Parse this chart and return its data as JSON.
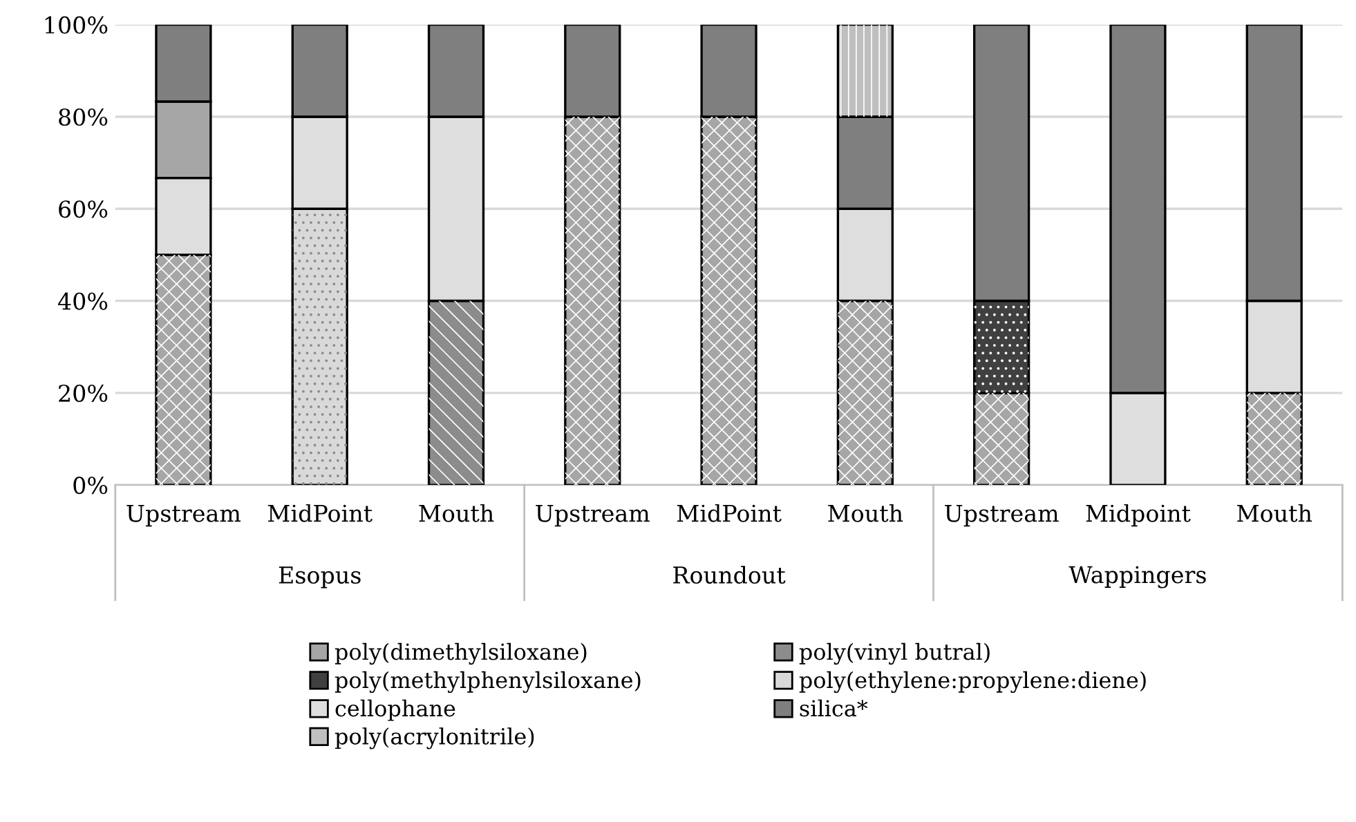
{
  "chart_data": {
    "type": "bar",
    "stacked": true,
    "categories": [
      "Upstream",
      "MidPoint",
      "Mouth",
      "Upstream",
      "MidPoint",
      "Mouth",
      "Upstream",
      "Midpoint",
      "Mouth"
    ],
    "annotations": [
      "Esopus",
      "Roundout",
      "Wappingers"
    ],
    "series": [
      {
        "name": "poly(dimethylsiloxane)",
        "color": "#a6a6a6",
        "values": [
          50,
          null,
          null,
          80,
          80,
          40,
          20,
          null,
          20
        ]
      },
      {
        "name": "poly(vinyl butral)",
        "color": "#8c8c8c",
        "values": [
          null,
          null,
          40,
          null,
          null,
          null,
          null,
          null,
          null
        ]
      },
      {
        "name": "poly(methylphenylsiloxane)",
        "color": "#404040",
        "values": [
          null,
          null,
          null,
          null,
          null,
          null,
          20,
          null,
          null
        ]
      },
      {
        "name": "poly(ethylene:propylene:diene)",
        "color": "#d9d9d9",
        "values": [
          null,
          60,
          null,
          null,
          null,
          null,
          null,
          null,
          null
        ]
      },
      {
        "name": "cellophane",
        "color": "#dedede",
        "values": [
          16.7,
          20,
          40,
          null,
          null,
          20,
          null,
          20,
          20
        ]
      },
      {
        "color": "#a6a6a6",
        "values": [
          16.6,
          null,
          null,
          null,
          null,
          null,
          null,
          null,
          null
        ]
      },
      {
        "name": "silica*",
        "color": "#7f7f7f",
        "values": [
          16.7,
          20,
          20,
          20,
          20,
          20,
          60,
          80,
          60
        ]
      },
      {
        "name": "poly(acrylonitrile)",
        "color": "#bfbfbf",
        "values": [
          null,
          null,
          null,
          null,
          null,
          20,
          null,
          null,
          null
        ]
      }
    ],
    "ylim": [
      0,
      100
    ],
    "yticks": [
      {
        "value": 0,
        "label": "0%"
      },
      {
        "value": 20,
        "label": "20%"
      },
      {
        "value": 40,
        "label": "40%"
      },
      {
        "value": 60,
        "label": "60%"
      },
      {
        "value": 80,
        "label": "80%"
      },
      {
        "value": 100,
        "label": "100%"
      }
    ],
    "grid": "y",
    "legend": "bottom"
  }
}
